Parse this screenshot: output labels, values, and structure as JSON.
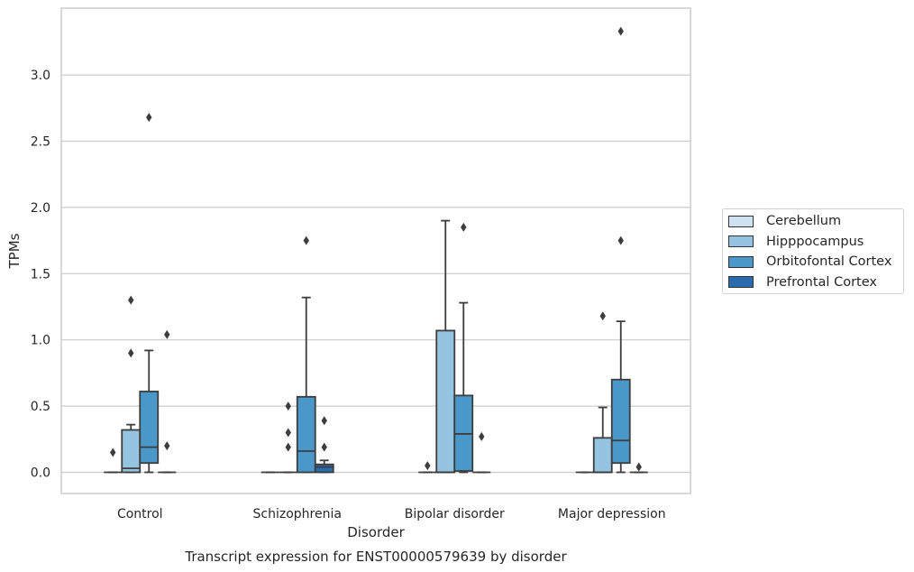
{
  "chart_data": {
    "type": "box",
    "title": "Transcript expression for ENST00000579639 by disorder",
    "xlabel": "Disorder",
    "ylabel": "TPMs",
    "ylim": [
      -0.17,
      3.5
    ],
    "yticks": [
      "0.0",
      "0.5",
      "1.0",
      "1.5",
      "2.0",
      "2.5",
      "3.0"
    ],
    "grid": "horizontal",
    "legend_position": "right",
    "categories": [
      "Control",
      "Schizophrenia",
      "Bipolar disorder",
      "Major depression"
    ],
    "series": [
      {
        "name": "Cerebellum",
        "color": "#d0e1f2",
        "boxes": [
          {
            "category": "Control",
            "whisker_low": 0.0,
            "q1": 0.0,
            "median": 0.0,
            "q3": 0.0,
            "whisker_high": 0.0,
            "outliers": [
              0.15
            ]
          },
          {
            "category": "Schizophrenia",
            "whisker_low": 0.0,
            "q1": 0.0,
            "median": 0.0,
            "q3": 0.0,
            "whisker_high": 0.0,
            "outliers": []
          },
          {
            "category": "Bipolar disorder",
            "whisker_low": 0.0,
            "q1": 0.0,
            "median": 0.0,
            "q3": 0.0,
            "whisker_high": 0.0,
            "outliers": [
              0.05
            ]
          },
          {
            "category": "Major depression",
            "whisker_low": 0.0,
            "q1": 0.0,
            "median": 0.0,
            "q3": 0.0,
            "whisker_high": 0.0,
            "outliers": []
          }
        ]
      },
      {
        "name": "Hipppocampus",
        "color": "#94c4df",
        "boxes": [
          {
            "category": "Control",
            "whisker_low": 0.0,
            "q1": 0.0,
            "median": 0.03,
            "q3": 0.32,
            "whisker_high": 0.36,
            "outliers": [
              0.9,
              1.3
            ]
          },
          {
            "category": "Schizophrenia",
            "whisker_low": 0.0,
            "q1": 0.0,
            "median": 0.0,
            "q3": 0.0,
            "whisker_high": 0.0,
            "outliers": [
              0.19,
              0.3,
              0.5
            ]
          },
          {
            "category": "Bipolar disorder",
            "whisker_low": 0.0,
            "q1": 0.0,
            "median": 0.0,
            "q3": 1.07,
            "whisker_high": 1.9,
            "outliers": []
          },
          {
            "category": "Major depression",
            "whisker_low": 0.0,
            "q1": 0.0,
            "median": 0.0,
            "q3": 0.26,
            "whisker_high": 0.49,
            "outliers": [
              1.18
            ]
          }
        ]
      },
      {
        "name": "Orbitofontal Cortex",
        "color": "#4a98c9",
        "boxes": [
          {
            "category": "Control",
            "whisker_low": 0.0,
            "q1": 0.07,
            "median": 0.19,
            "q3": 0.61,
            "whisker_high": 0.92,
            "outliers": [
              2.68
            ]
          },
          {
            "category": "Schizophrenia",
            "whisker_low": 0.0,
            "q1": 0.0,
            "median": 0.16,
            "q3": 0.57,
            "whisker_high": 1.32,
            "outliers": [
              1.75
            ]
          },
          {
            "category": "Bipolar disorder",
            "whisker_low": 0.0,
            "q1": 0.01,
            "median": 0.29,
            "q3": 0.58,
            "whisker_high": 1.28,
            "outliers": [
              1.85
            ]
          },
          {
            "category": "Major depression",
            "whisker_low": 0.0,
            "q1": 0.07,
            "median": 0.24,
            "q3": 0.7,
            "whisker_high": 1.14,
            "outliers": [
              1.75,
              3.33
            ]
          }
        ]
      },
      {
        "name": "Prefrontal Cortex",
        "color": "#2a6cad",
        "boxes": [
          {
            "category": "Control",
            "whisker_low": 0.0,
            "q1": 0.0,
            "median": 0.0,
            "q3": 0.0,
            "whisker_high": 0.0,
            "outliers": [
              0.2,
              1.04
            ]
          },
          {
            "category": "Schizophrenia",
            "whisker_low": 0.0,
            "q1": 0.0,
            "median": 0.04,
            "q3": 0.06,
            "whisker_high": 0.09,
            "outliers": [
              0.19,
              0.39
            ]
          },
          {
            "category": "Bipolar disorder",
            "whisker_low": 0.0,
            "q1": 0.0,
            "median": 0.0,
            "q3": 0.0,
            "whisker_high": 0.0,
            "outliers": [
              0.27
            ]
          },
          {
            "category": "Major depression",
            "whisker_low": 0.0,
            "q1": 0.0,
            "median": 0.0,
            "q3": 0.0,
            "whisker_high": 0.0,
            "outliers": [
              0.04
            ]
          }
        ]
      }
    ]
  }
}
